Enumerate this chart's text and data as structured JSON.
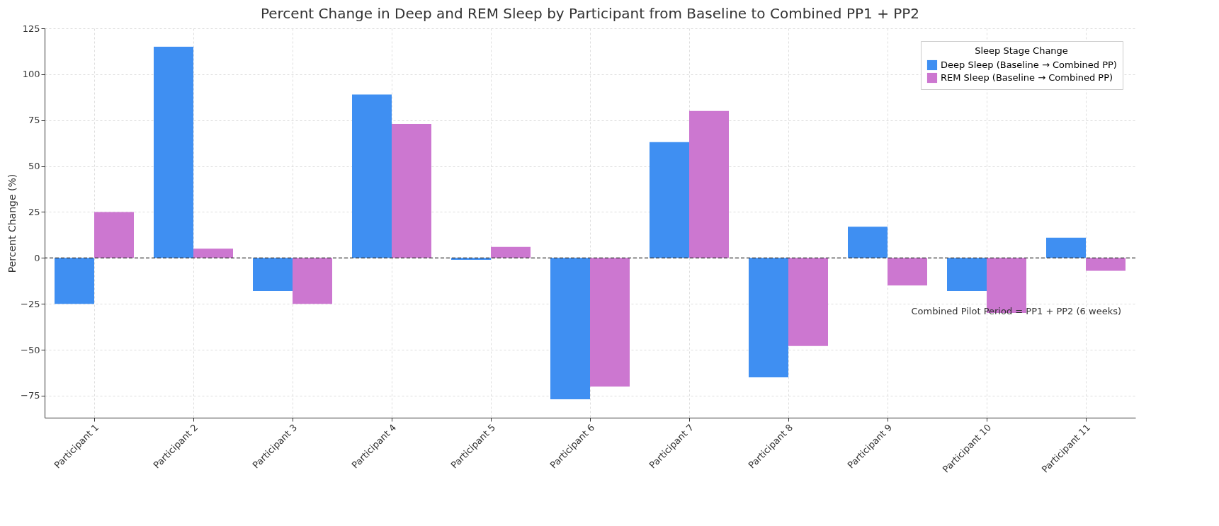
{
  "chart_data": {
    "type": "bar",
    "title": "Percent Change in Deep and REM Sleep by Participant from Baseline to Combined PP1 + PP2",
    "ylabel": "Percent Change (%)",
    "legend_title": "Sleep Stage Change",
    "categories": [
      "Participant 1",
      "Participant 2",
      "Participant 3",
      "Participant 4",
      "Participant 5",
      "Participant 6",
      "Participant 7",
      "Participant 8",
      "Participant 9",
      "Participant 10",
      "Participant 11"
    ],
    "series": [
      {
        "name": "Deep Sleep (Baseline → Combined PP)",
        "color": "#3f8ff2",
        "values": [
          -25,
          115,
          -18,
          89,
          -1,
          -77,
          63,
          -65,
          17,
          -18,
          11
        ]
      },
      {
        "name": "REM Sleep (Baseline → Combined PP)",
        "color": "#cc77d0",
        "values": [
          25,
          5,
          -25,
          73,
          6,
          -70,
          80,
          -48,
          -15,
          -30,
          -7
        ]
      }
    ],
    "ylim": [
      -87,
      125
    ],
    "yticks": [
      -75,
      -50,
      -25,
      0,
      25,
      50,
      75,
      100,
      125
    ],
    "grid": true,
    "legend": "top right",
    "ref_lines": [
      {
        "axis": "y",
        "value": 0,
        "line_style": "dashed",
        "color": "#333333"
      }
    ],
    "annotations": [
      "Combined Pilot Period = PP1 + PP2 (6 weeks)"
    ]
  }
}
